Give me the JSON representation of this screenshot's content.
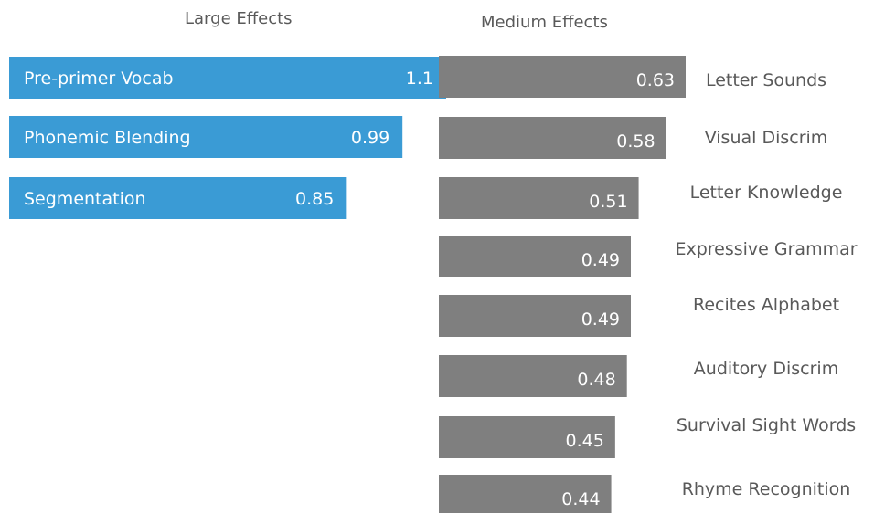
{
  "chart_data": [
    {
      "type": "bar",
      "title": "Large Effects",
      "color": "#3a9bd5",
      "label_color": "#ffffff",
      "categories": [
        "Pre-primer Vocab",
        "Phonemic Blending",
        "Segmentation"
      ],
      "values": [
        1.1,
        0.99,
        0.85
      ],
      "value_labels": [
        "1.1",
        "0.99",
        "0.85"
      ]
    },
    {
      "type": "bar",
      "title": "Medium Effects",
      "color": "#7f7f7f",
      "label_color": "#ffffff",
      "category_label_color": "#595959",
      "categories": [
        "Letter Sounds",
        "Visual Discrim",
        "Letter Knowledge",
        "Expressive Grammar",
        "Recites Alphabet",
        "Auditory Discrim",
        "Survival Sight Words",
        "Rhyme Recognition"
      ],
      "values": [
        0.63,
        0.58,
        0.51,
        0.49,
        0.49,
        0.48,
        0.45,
        0.44
      ],
      "value_labels": [
        "0.63",
        "0.58",
        "0.51",
        "0.49",
        "0.49",
        "0.48",
        "0.45",
        "0.44"
      ]
    }
  ]
}
